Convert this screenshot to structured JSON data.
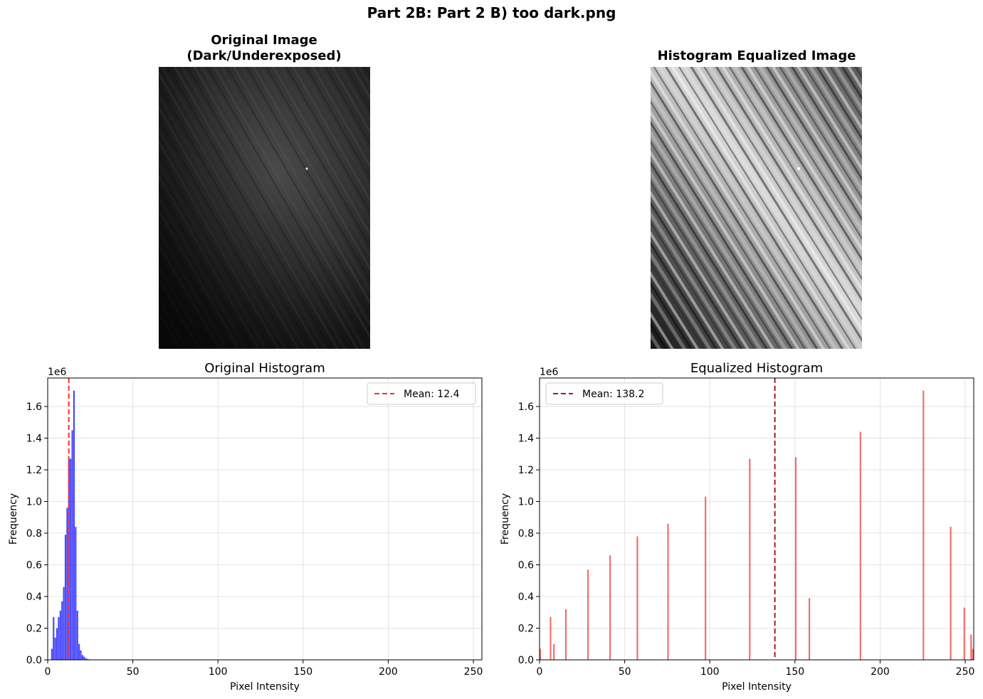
{
  "figure": {
    "suptitle": "Part 2B: Part 2 B) too dark.png"
  },
  "images": {
    "original": {
      "title": "Original Image\n(Dark/Underexposed)"
    },
    "equalized": {
      "title": "Histogram Equalized Image"
    }
  },
  "chart_data": [
    {
      "type": "bar",
      "title": "Original Histogram",
      "xlabel": "Pixel Intensity",
      "ylabel": "Frequency",
      "offset_label": "1e6",
      "xlim": [
        0,
        255
      ],
      "ylim": [
        0,
        1.78
      ],
      "xticks": [
        0,
        50,
        100,
        150,
        200,
        250
      ],
      "yticks": [
        0.0,
        0.2,
        0.4,
        0.6,
        0.8,
        1.0,
        1.2,
        1.4,
        1.6
      ],
      "ytick_labels": [
        "0.0",
        "0.2",
        "0.4",
        "0.6",
        "0.8",
        "1.0",
        "1.2",
        "1.4",
        "1.6"
      ],
      "grid": true,
      "legend_position": "top-right",
      "bar_color": "#0000ff",
      "mean_line": {
        "value": 12.4,
        "label": "Mean: 12.4",
        "color": "#ff2b2b"
      },
      "bins": [
        {
          "x": 2,
          "y": 0.07
        },
        {
          "x": 3,
          "y": 0.27
        },
        {
          "x": 4,
          "y": 0.14
        },
        {
          "x": 5,
          "y": 0.2
        },
        {
          "x": 6,
          "y": 0.27
        },
        {
          "x": 7,
          "y": 0.31
        },
        {
          "x": 8,
          "y": 0.37
        },
        {
          "x": 9,
          "y": 0.46
        },
        {
          "x": 10,
          "y": 0.79
        },
        {
          "x": 11,
          "y": 0.96
        },
        {
          "x": 12,
          "y": 1.27
        },
        {
          "x": 13,
          "y": 1.27
        },
        {
          "x": 14,
          "y": 1.45
        },
        {
          "x": 15,
          "y": 1.7
        },
        {
          "x": 16,
          "y": 0.84
        },
        {
          "x": 17,
          "y": 0.31
        },
        {
          "x": 18,
          "y": 0.1
        },
        {
          "x": 19,
          "y": 0.06
        },
        {
          "x": 20,
          "y": 0.03
        },
        {
          "x": 21,
          "y": 0.02
        },
        {
          "x": 22,
          "y": 0.01
        },
        {
          "x": 23,
          "y": 0.005
        },
        {
          "x": 24,
          "y": 0.003
        }
      ]
    },
    {
      "type": "bar",
      "title": "Equalized Histogram",
      "xlabel": "Pixel Intensity",
      "ylabel": "Frequency",
      "offset_label": "1e6",
      "xlim": [
        0,
        255
      ],
      "ylim": [
        0,
        1.78
      ],
      "xticks": [
        0,
        50,
        100,
        150,
        200,
        250
      ],
      "yticks": [
        0.0,
        0.2,
        0.4,
        0.6,
        0.8,
        1.0,
        1.2,
        1.4,
        1.6
      ],
      "ytick_labels": [
        "0.0",
        "0.2",
        "0.4",
        "0.6",
        "0.8",
        "1.0",
        "1.2",
        "1.4",
        "1.6"
      ],
      "grid": true,
      "legend_position": "top-left",
      "bar_color": "#ee3333",
      "mean_line": {
        "value": 138.2,
        "label": "Mean: 138.2",
        "color": "#a01c1c"
      },
      "bins": [
        {
          "x": 0,
          "y": 0.07
        },
        {
          "x": 6,
          "y": 0.27
        },
        {
          "x": 8,
          "y": 0.1
        },
        {
          "x": 15,
          "y": 0.32
        },
        {
          "x": 28,
          "y": 0.57
        },
        {
          "x": 41,
          "y": 0.66
        },
        {
          "x": 57,
          "y": 0.78
        },
        {
          "x": 75,
          "y": 0.86
        },
        {
          "x": 97,
          "y": 1.03
        },
        {
          "x": 123,
          "y": 1.27
        },
        {
          "x": 150,
          "y": 1.28
        },
        {
          "x": 158,
          "y": 0.39
        },
        {
          "x": 188,
          "y": 1.44
        },
        {
          "x": 225,
          "y": 1.7
        },
        {
          "x": 241,
          "y": 0.84
        },
        {
          "x": 249,
          "y": 0.33
        },
        {
          "x": 253,
          "y": 0.16
        },
        {
          "x": 254,
          "y": 0.07
        }
      ]
    }
  ]
}
